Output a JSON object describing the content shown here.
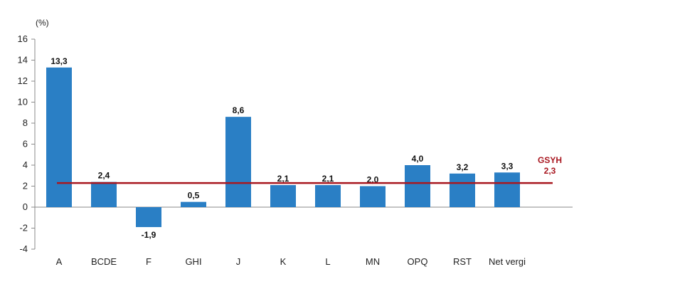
{
  "chart_data": {
    "type": "bar",
    "unit_label": "(%)",
    "categories": [
      "A",
      "BCDE",
      "F",
      "GHI",
      "J",
      "K",
      "L",
      "MN",
      "OPQ",
      "RST",
      "Net vergi"
    ],
    "values": [
      13.3,
      2.4,
      -1.9,
      0.5,
      8.6,
      2.1,
      2.1,
      2.0,
      4.0,
      3.2,
      3.3
    ],
    "value_labels": [
      "13,3",
      "2,4",
      "-1,9",
      "0,5",
      "8,6",
      "2,1",
      "2,1",
      "2,0",
      "4,0",
      "3,2",
      "3,3"
    ],
    "ylim": [
      -4,
      16
    ],
    "yticks": [
      -4,
      -2,
      0,
      2,
      4,
      6,
      8,
      10,
      12,
      14,
      16
    ],
    "grid": false,
    "reference_line": {
      "name": "GSYH",
      "value": 2.3,
      "value_label": "2,3"
    },
    "colors": {
      "bar": "#2a7fc5",
      "reference": "#a8161f",
      "axis": "#888888"
    }
  }
}
